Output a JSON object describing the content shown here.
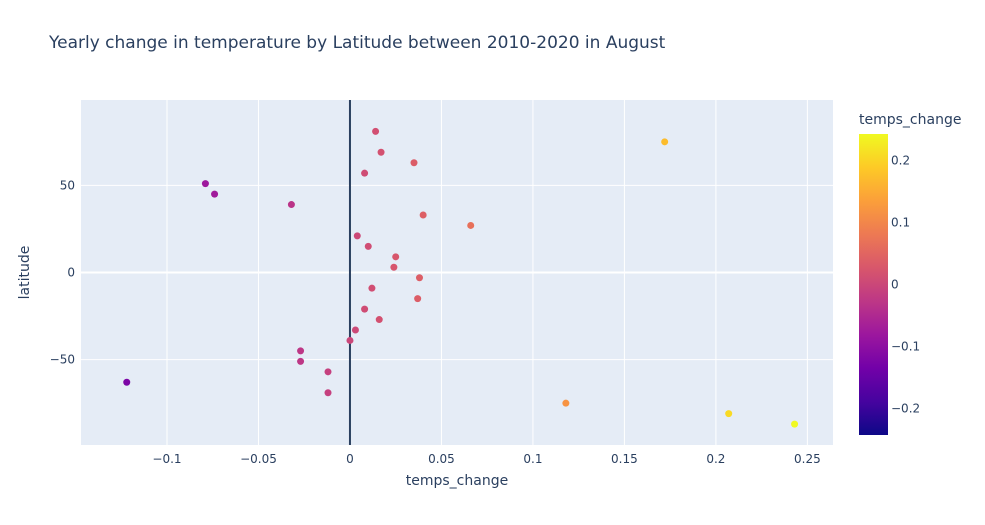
{
  "chart_data": {
    "type": "scatter",
    "title": "Yearly change in temperature by Latitude between 2010-2020 in August",
    "xlabel": "temps_change",
    "ylabel": "latitude",
    "xlim": [
      -0.147,
      0.264
    ],
    "ylim": [
      -99,
      99
    ],
    "x_ticks": [
      -0.1,
      -0.05,
      0,
      0.05,
      0.1,
      0.15,
      0.2,
      0.25
    ],
    "x_tick_labels": [
      "−0.1",
      "−0.05",
      "0",
      "0.05",
      "0.1",
      "0.15",
      "0.2",
      "0.25"
    ],
    "y_ticks": [
      -50,
      0,
      50
    ],
    "y_tick_labels": [
      "−50",
      "0",
      "50"
    ],
    "zero_line_x": 0,
    "grid": true,
    "plot_background": "#e5ecf6",
    "zero_line_color": "#2a3f5f",
    "colorbar": {
      "title": "temps_change",
      "range": [
        -0.243,
        0.243
      ],
      "ticks": [
        0.2,
        0.1,
        0,
        -0.1,
        -0.2
      ],
      "tick_labels": [
        "0.2",
        "0.1",
        "0",
        "−0.1",
        "−0.2"
      ],
      "colorscale": [
        "#0d0887",
        "#46039f",
        "#7201a8",
        "#9c179e",
        "#bd3786",
        "#d8576b",
        "#ed7953",
        "#fb9f3a",
        "#fdca26",
        "#f0f921"
      ]
    },
    "points": [
      {
        "x": 0.014,
        "y": 81
      },
      {
        "x": 0.017,
        "y": 69
      },
      {
        "x": 0.035,
        "y": 63
      },
      {
        "x": 0.008,
        "y": 57
      },
      {
        "x": 0.172,
        "y": 75
      },
      {
        "x": -0.079,
        "y": 51
      },
      {
        "x": -0.074,
        "y": 45
      },
      {
        "x": -0.032,
        "y": 39
      },
      {
        "x": 0.04,
        "y": 33
      },
      {
        "x": 0.066,
        "y": 27
      },
      {
        "x": 0.004,
        "y": 21
      },
      {
        "x": 0.01,
        "y": 15
      },
      {
        "x": 0.025,
        "y": 9
      },
      {
        "x": 0.024,
        "y": 3
      },
      {
        "x": 0.038,
        "y": -3
      },
      {
        "x": 0.012,
        "y": -9
      },
      {
        "x": 0.037,
        "y": -15
      },
      {
        "x": 0.008,
        "y": -21
      },
      {
        "x": 0.016,
        "y": -27
      },
      {
        "x": 0.003,
        "y": -33
      },
      {
        "x": 0.0,
        "y": -39
      },
      {
        "x": -0.027,
        "y": -45
      },
      {
        "x": -0.027,
        "y": -51
      },
      {
        "x": -0.012,
        "y": -57
      },
      {
        "x": -0.122,
        "y": -63
      },
      {
        "x": -0.012,
        "y": -69
      },
      {
        "x": 0.118,
        "y": -75
      },
      {
        "x": 0.207,
        "y": -81
      },
      {
        "x": 0.243,
        "y": -87
      }
    ]
  }
}
